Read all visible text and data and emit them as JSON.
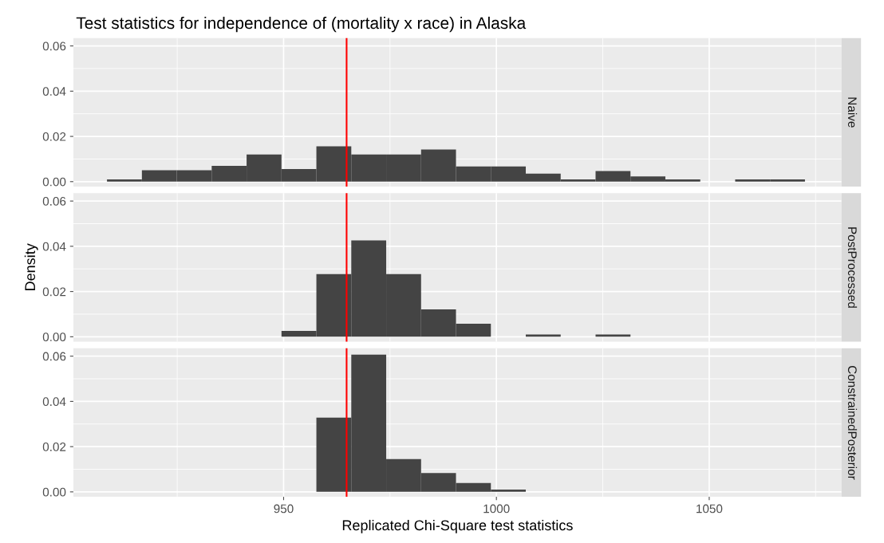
{
  "chart_data": [
    {
      "type": "histogram",
      "title": "Test statistics for independence of (mortality x race) in Alaska",
      "annotations": [
        "Naive"
      ],
      "bins": [
        908.5,
        916.7,
        924.9,
        933.1,
        941.3,
        949.5,
        957.7,
        965.9,
        974.1,
        982.3,
        990.5,
        998.7,
        1006.9,
        1015.1,
        1023.3,
        1031.5,
        1039.7,
        1047.9,
        1056.1,
        1064.3,
        1072.5
      ],
      "values": [
        0.001,
        0.005,
        0.005,
        0.007,
        0.012,
        0.0056,
        0.0156,
        0.012,
        0.012,
        0.0142,
        0.0067,
        0.0067,
        0.0035,
        0.001,
        0.0047,
        0.0023,
        0.001,
        0,
        0.001,
        0.001
      ],
      "color": "#444444",
      "xlim": [
        900.6,
        1081.1
      ],
      "ylim": [
        -0.0022,
        0.0635
      ],
      "xticks": [
        950,
        1000,
        1050
      ],
      "yticks": [
        {
          "value": 0,
          "label": "0.00"
        },
        {
          "value": 0.02,
          "label": "0.02"
        },
        {
          "value": 0.04,
          "label": "0.04"
        },
        {
          "value": 0.06,
          "label": "0.06"
        }
      ],
      "ref_lines": [
        {
          "axis": "x",
          "value": 964.8,
          "color": "#ff0000"
        }
      ],
      "grid": true,
      "tick_labels": "y"
    },
    {
      "type": "histogram",
      "annotations": [
        "PostProcessed"
      ],
      "ylabel": "Density",
      "bins": [
        949.5,
        957.7,
        965.9,
        974.1,
        982.3,
        990.5,
        998.7,
        1006.9,
        1015.1,
        1023.3,
        1031.5
      ],
      "values": [
        0.0026,
        0.0277,
        0.0426,
        0.0277,
        0.0121,
        0.0058,
        0,
        0.001,
        0,
        0.001
      ],
      "color": "#444444",
      "xlim": [
        900.6,
        1081.1
      ],
      "ylim": [
        -0.0022,
        0.0635
      ],
      "xticks": [
        950,
        1000,
        1050
      ],
      "yticks": [
        {
          "value": 0,
          "label": "0.00"
        },
        {
          "value": 0.02,
          "label": "0.02"
        },
        {
          "value": 0.04,
          "label": "0.04"
        },
        {
          "value": 0.06,
          "label": "0.06"
        }
      ],
      "ref_lines": [
        {
          "axis": "x",
          "value": 964.8,
          "color": "#ff0000"
        }
      ],
      "grid": true,
      "tick_labels": "y"
    },
    {
      "type": "histogram",
      "annotations": [
        "ConstrainedPosterior"
      ],
      "xlabel": "Replicated Chi-Square test statistics",
      "bins": [
        957.7,
        965.9,
        974.1,
        982.3,
        990.5,
        998.7,
        1006.9
      ],
      "values": [
        0.0328,
        0.0607,
        0.0145,
        0.0083,
        0.0039,
        0.001
      ],
      "color": "#444444",
      "xlim": [
        900.6,
        1081.1
      ],
      "ylim": [
        -0.0022,
        0.0635
      ],
      "xticks": [
        950,
        1000,
        1050
      ],
      "yticks": [
        {
          "value": 0,
          "label": "0.00"
        },
        {
          "value": 0.02,
          "label": "0.02"
        },
        {
          "value": 0.04,
          "label": "0.04"
        },
        {
          "value": 0.06,
          "label": "0.06"
        }
      ],
      "ref_lines": [
        {
          "axis": "x",
          "value": 964.8,
          "color": "#ff0000"
        }
      ],
      "grid": true
    }
  ]
}
